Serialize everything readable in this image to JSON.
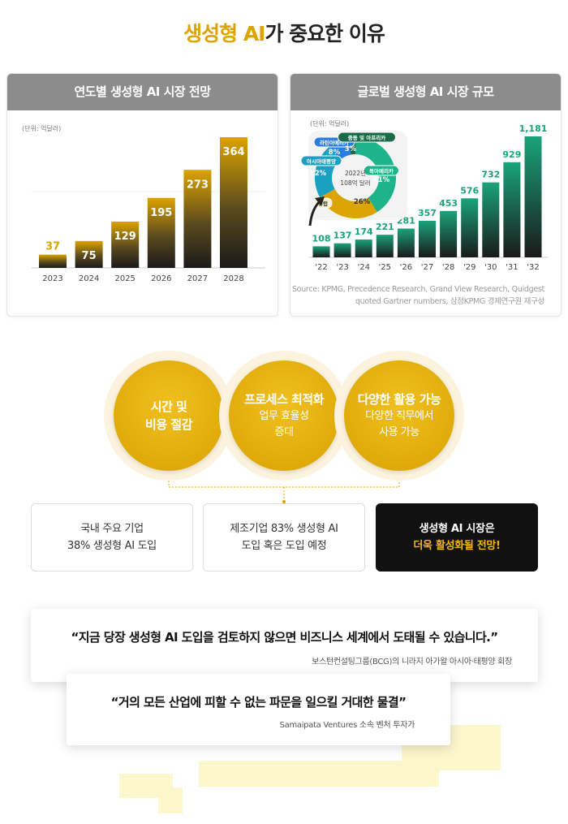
{
  "title": {
    "highlight": "생성형 AI",
    "rest": "가 중요한 이유"
  },
  "colors": {
    "gold": "#dca400",
    "green": "#1aa37a",
    "dark": "#111111"
  },
  "chart_data": [
    {
      "type": "bar",
      "title": "연도별 생성형 AI 시장 전망",
      "unit": "(단위: 억달러)",
      "categories": [
        "2023",
        "2024",
        "2025",
        "2026",
        "2027",
        "2028"
      ],
      "values": [
        37,
        75,
        129,
        195,
        273,
        364
      ]
    },
    {
      "type": "bar",
      "title": "글로벌 생성형 AI 시장 규모",
      "unit": "(단위: 억달러)",
      "categories": [
        "'22",
        "'23",
        "'24",
        "'25",
        "'26",
        "'27",
        "'28",
        "'29",
        "'30",
        "'31",
        "'32"
      ],
      "values": [
        108,
        137,
        174,
        221,
        281,
        357,
        453,
        576,
        732,
        929,
        1181
      ],
      "source": [
        "Source: KPMG, Precedence Research, Grand View Research, Quidgest",
        "quoted Gartner numbers, 삼정KPMG 경제연구원 재구성"
      ],
      "inset": {
        "type": "pie",
        "center_label": [
          "2022년",
          "108억 달러"
        ],
        "slices": [
          {
            "label": "북아메리카",
            "value": 41,
            "color": "#1db48c"
          },
          {
            "label": "유럽",
            "value": 26,
            "color": "#dca400"
          },
          {
            "label": "아시아태평양",
            "value": 22,
            "color": "#1aa0c0"
          },
          {
            "label": "라틴아메리카",
            "value": 8,
            "color": "#2a7de1"
          },
          {
            "label": "중동 및 아프리카",
            "value": 3,
            "color": "#1a6b4a"
          }
        ]
      }
    }
  ],
  "benefits": [
    {
      "title": "시간 및\n비용 절감",
      "sub": ""
    },
    {
      "title": "프로세스 최적화",
      "sub": "업무 효율성\n증대"
    },
    {
      "title": "다양한 활용 가능",
      "sub": "다양한 직무에서\n사용 가능"
    }
  ],
  "facts": [
    {
      "l1": "국내 주요 기업",
      "l2": "38% 생성형 AI 도입"
    },
    {
      "l1": "제조기업 83% 생성형 AI",
      "l2": "도입 혹은 도입 예정"
    },
    {
      "l1": "생성형 AI 시장은",
      "l2": "더욱 활성화될 전망!"
    }
  ],
  "quotes": [
    {
      "text": "“지금 당장 생성형 AI 도입을 검토하지 않으면 비즈니스 세계에서 도태될 수 있습니다.”",
      "author": "보스턴컨설팅그룹(BCG)의 니라지 아가왈 아시아·태평양 회장"
    },
    {
      "text": "“거의 모든 산업에 피할 수 없는 파문을 일으킬 거대한 물결”",
      "author": "Samaipata Ventures 소속 벤처 투자가"
    }
  ]
}
